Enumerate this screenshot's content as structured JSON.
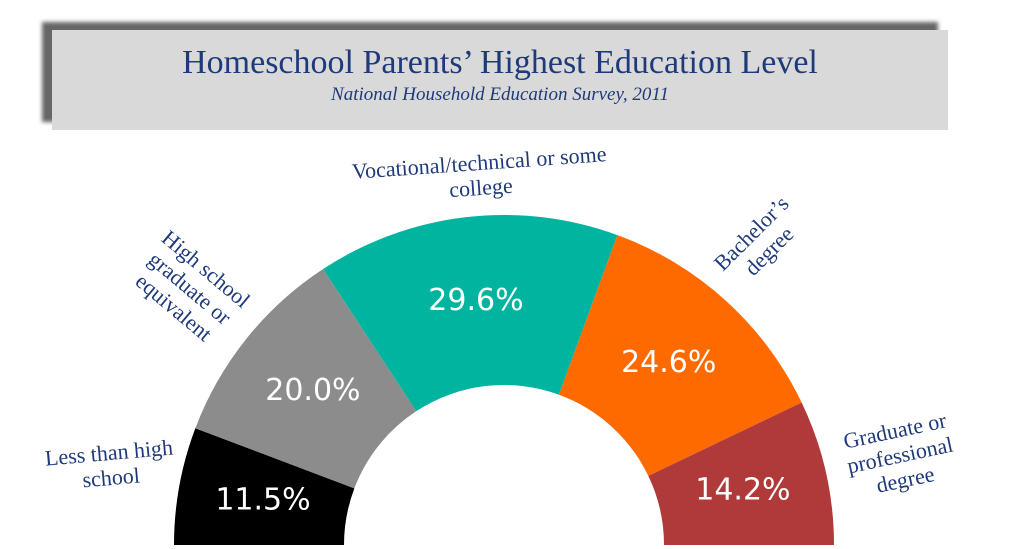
{
  "chart_data": {
    "type": "semi-donut",
    "title": "Homeschool Parents’ Highest Education Level",
    "subtitle": "National Household Education Survey, 2011",
    "categories": [
      "Less than high school",
      "High school graduate or equivalent",
      "Vocational/technical or some college",
      "Bachelor’s degree",
      "Graduate or professional degree"
    ],
    "values": [
      11.5,
      20.0,
      29.6,
      24.6,
      14.2
    ],
    "value_labels": [
      "11.5%",
      "20.0%",
      "29.6%",
      "24.6%",
      "14.2%"
    ],
    "colors": [
      "#000000",
      "#8c8c8c",
      "#00b4a0",
      "#ff6a00",
      "#b03a3a"
    ]
  }
}
